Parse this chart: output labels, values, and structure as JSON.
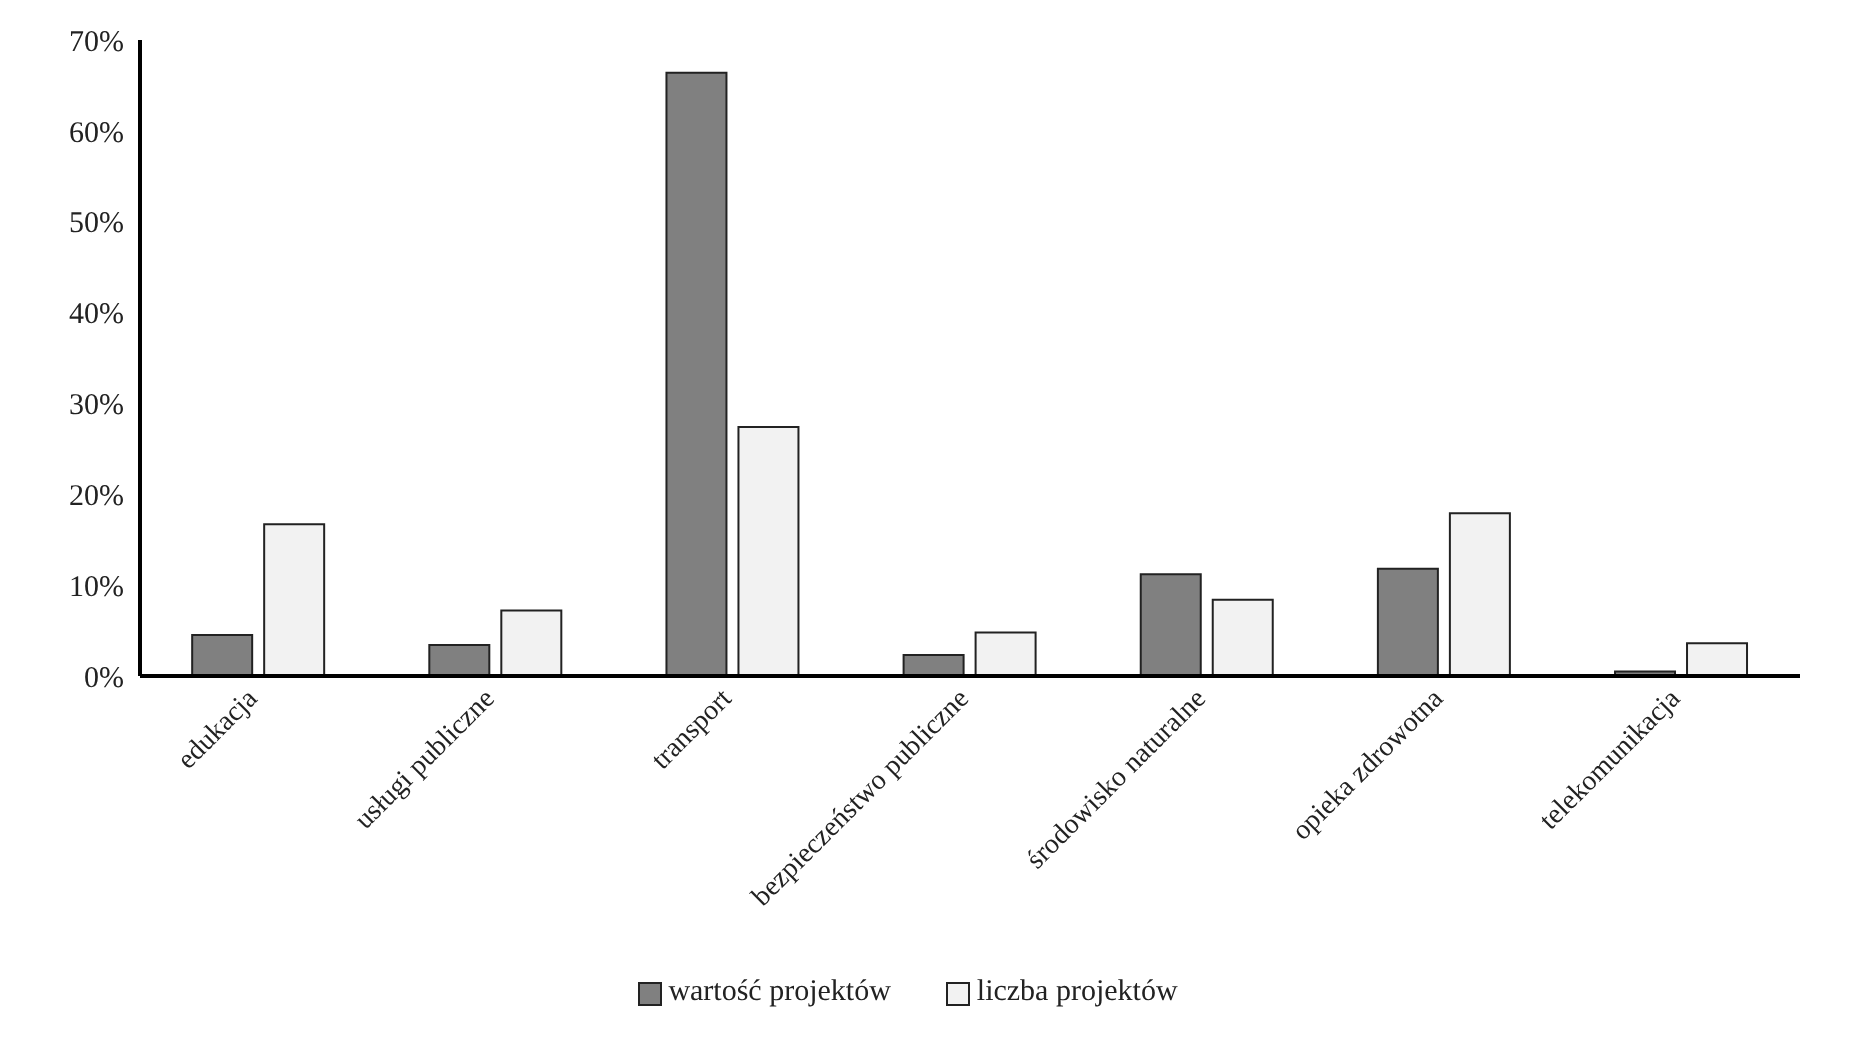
{
  "chart_data": {
    "type": "bar",
    "categories": [
      "edukacja",
      "usługi publiczne",
      "transport",
      "bezpieczeństwo publiczne",
      "środowisko naturalne",
      "opieka zdrowotna",
      "telekomunikacja"
    ],
    "series": [
      {
        "name": "wartość projektów",
        "color": "#808080",
        "values": [
          4.5,
          3.4,
          66.4,
          2.3,
          11.2,
          11.8,
          0.5
        ]
      },
      {
        "name": "liczba projektów",
        "color": "#f2f2f2",
        "values": [
          16.7,
          7.2,
          27.4,
          4.8,
          8.4,
          17.9,
          3.6
        ]
      }
    ],
    "ylim": [
      0,
      70
    ],
    "yticks": [
      {
        "value": 0,
        "label": "0%"
      },
      {
        "value": 10,
        "label": "10%"
      },
      {
        "value": 20,
        "label": "20%"
      },
      {
        "value": 30,
        "label": "30%"
      },
      {
        "value": 40,
        "label": "40%"
      },
      {
        "value": 50,
        "label": "50%"
      },
      {
        "value": 60,
        "label": "60%"
      },
      {
        "value": 70,
        "label": "70%"
      }
    ],
    "grid": false,
    "legend": "bottom"
  }
}
